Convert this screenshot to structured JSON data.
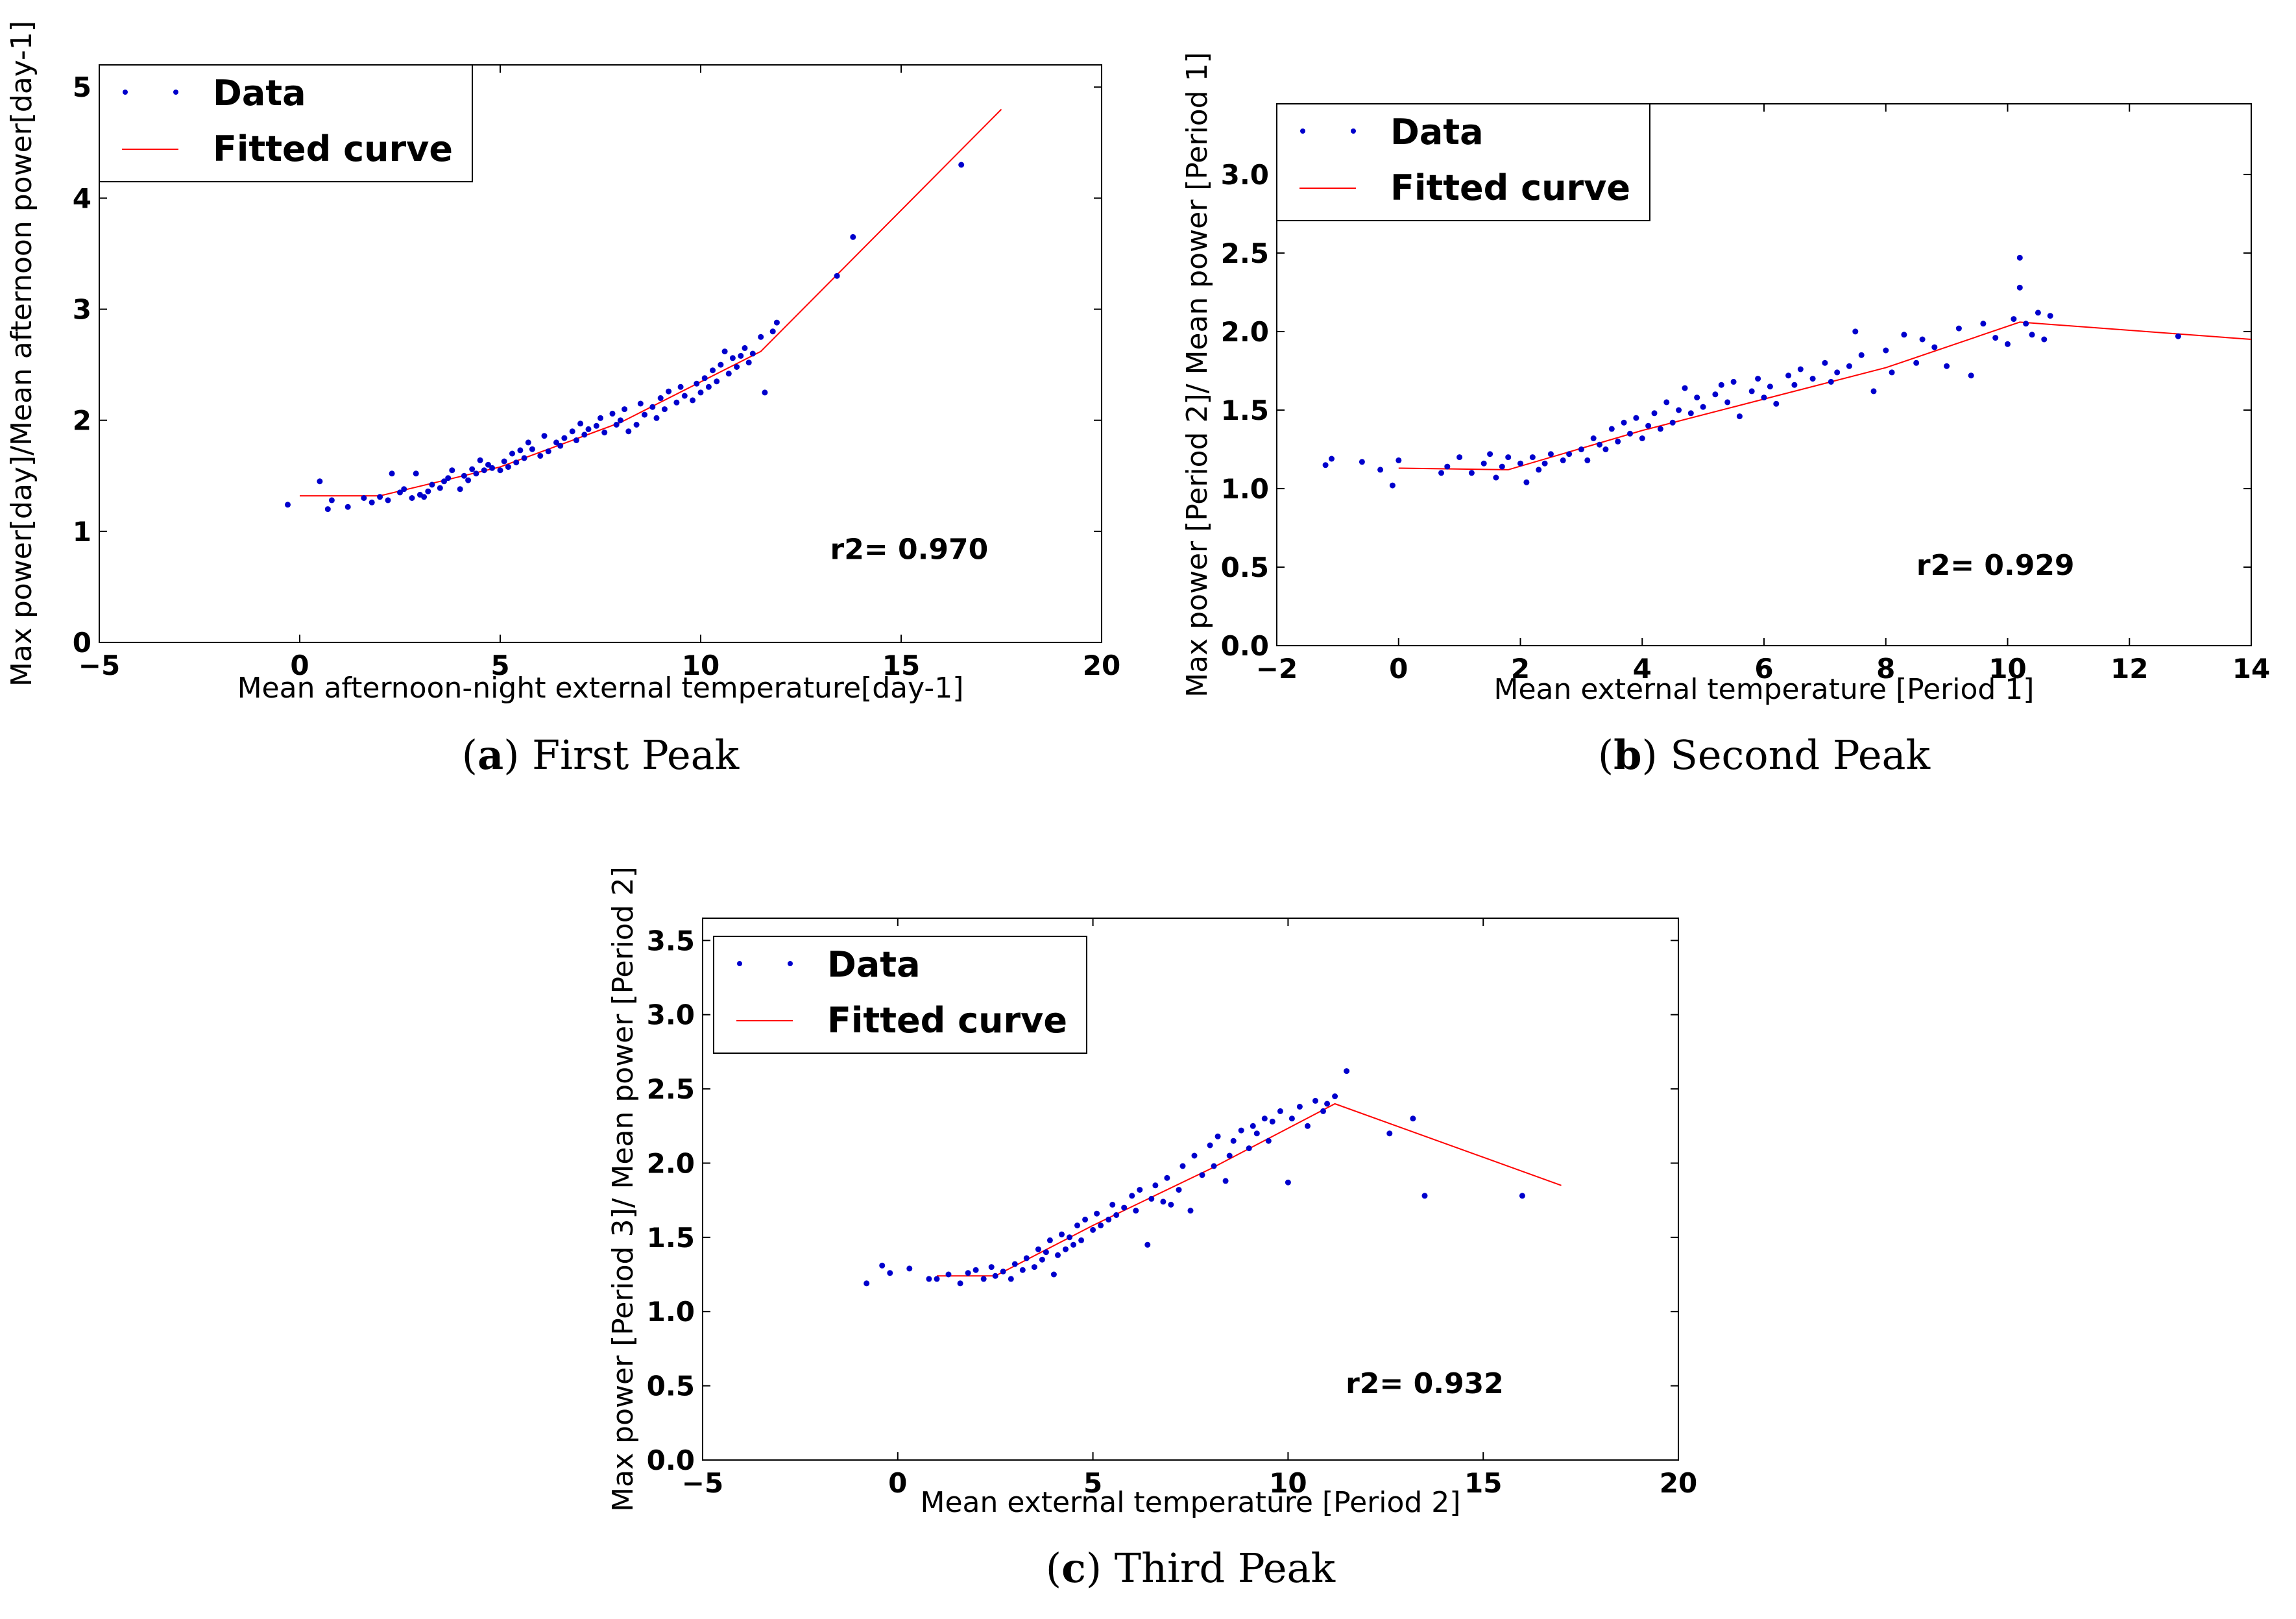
{
  "chart_data": [
    {
      "type": "scatter",
      "panel": "(a)",
      "caption_letter": "a",
      "caption_text": "First Peak",
      "xlabel": "Mean afternoon-night external temperature[day-1]",
      "ylabel": "Max power[day]/Mean afternoon power[day-1]",
      "xlim": [
        -5,
        20
      ],
      "ylim": [
        0,
        5.2
      ],
      "xticks": [
        -5,
        0,
        5,
        10,
        15,
        20
      ],
      "yticks": [
        0,
        1,
        2,
        3,
        4,
        5
      ],
      "ytick_decimals": 0,
      "legend": {
        "data": "Data",
        "fit": "Fitted curve"
      },
      "r2_label": "r2= 0.970",
      "r2_pos": [
        15.2,
        0.75
      ],
      "point_color": "#0000cc",
      "line_color": "#ff0000",
      "fit": {
        "x": [
          0,
          2.0,
          5,
          8,
          11.5,
          17.5
        ],
        "y": [
          1.32,
          1.32,
          1.58,
          1.98,
          2.62,
          4.8
        ]
      },
      "points": {
        "x": [
          -0.3,
          0.5,
          0.7,
          0.8,
          1.2,
          1.6,
          1.8,
          2.0,
          2.2,
          2.3,
          2.5,
          2.6,
          2.8,
          2.9,
          3.0,
          3.1,
          3.2,
          3.3,
          3.5,
          3.6,
          3.7,
          3.8,
          4.0,
          4.1,
          4.2,
          4.3,
          4.4,
          4.5,
          4.6,
          4.7,
          4.8,
          5.0,
          5.1,
          5.2,
          5.3,
          5.4,
          5.5,
          5.6,
          5.7,
          5.8,
          6.0,
          6.1,
          6.2,
          6.4,
          6.5,
          6.6,
          6.8,
          6.9,
          7.0,
          7.1,
          7.2,
          7.4,
          7.5,
          7.6,
          7.8,
          7.9,
          8.0,
          8.1,
          8.2,
          8.4,
          8.5,
          8.6,
          8.8,
          8.9,
          9.0,
          9.1,
          9.2,
          9.4,
          9.5,
          9.6,
          9.8,
          9.9,
          10.0,
          10.1,
          10.2,
          10.3,
          10.4,
          10.5,
          10.6,
          10.7,
          10.8,
          10.9,
          11.0,
          11.1,
          11.2,
          11.3,
          11.5,
          11.6,
          11.8,
          11.9,
          13.4,
          13.8,
          16.5
        ],
        "y": [
          1.24,
          1.45,
          1.2,
          1.28,
          1.22,
          1.3,
          1.26,
          1.31,
          1.28,
          1.52,
          1.35,
          1.38,
          1.3,
          1.52,
          1.33,
          1.31,
          1.36,
          1.42,
          1.39,
          1.45,
          1.48,
          1.55,
          1.38,
          1.5,
          1.46,
          1.56,
          1.52,
          1.64,
          1.55,
          1.6,
          1.57,
          1.55,
          1.63,
          1.58,
          1.7,
          1.62,
          1.73,
          1.66,
          1.8,
          1.74,
          1.68,
          1.86,
          1.72,
          1.8,
          1.77,
          1.84,
          1.9,
          1.82,
          1.97,
          1.87,
          1.92,
          1.95,
          2.02,
          1.89,
          2.06,
          1.96,
          2.0,
          2.1,
          1.9,
          1.96,
          2.15,
          2.05,
          2.12,
          2.02,
          2.2,
          2.1,
          2.26,
          2.16,
          2.3,
          2.22,
          2.18,
          2.33,
          2.25,
          2.38,
          2.3,
          2.45,
          2.35,
          2.5,
          2.62,
          2.42,
          2.56,
          2.48,
          2.58,
          2.65,
          2.52,
          2.6,
          2.75,
          2.25,
          2.8,
          2.88,
          3.3,
          3.65,
          4.3
        ]
      }
    },
    {
      "type": "scatter",
      "panel": "(b)",
      "caption_letter": "b",
      "caption_text": "Second Peak",
      "xlabel": "Mean external temperature [Period 1]",
      "ylabel": "Max power [Period 2]/ Mean power [Period 1]",
      "xlim": [
        -2,
        14
      ],
      "ylim": [
        0,
        3.45
      ],
      "xticks": [
        -2,
        0,
        2,
        4,
        6,
        8,
        10,
        12,
        14
      ],
      "yticks": [
        0.0,
        0.5,
        1.0,
        1.5,
        2.0,
        2.5,
        3.0
      ],
      "ytick_decimals": 1,
      "legend": {
        "data": "Data",
        "fit": "Fitted curve"
      },
      "r2_label": "r2= 0.929",
      "r2_pos": [
        9.8,
        0.45
      ],
      "point_color": "#0000cc",
      "line_color": "#ff0000",
      "fit": {
        "x": [
          0,
          1.8,
          4,
          6,
          8,
          10.2,
          14
        ],
        "y": [
          1.13,
          1.12,
          1.37,
          1.57,
          1.77,
          2.06,
          1.95
        ]
      },
      "points": {
        "x": [
          -1.2,
          -1.1,
          -0.6,
          -0.3,
          -0.1,
          0.0,
          0.7,
          0.8,
          1.0,
          1.2,
          1.4,
          1.5,
          1.6,
          1.7,
          1.8,
          2.0,
          2.1,
          2.2,
          2.3,
          2.4,
          2.5,
          2.7,
          2.8,
          3.0,
          3.1,
          3.2,
          3.3,
          3.4,
          3.5,
          3.6,
          3.7,
          3.8,
          3.9,
          4.0,
          4.1,
          4.2,
          4.3,
          4.4,
          4.5,
          4.6,
          4.7,
          4.8,
          4.9,
          5.0,
          5.2,
          5.3,
          5.4,
          5.5,
          5.6,
          5.8,
          5.9,
          6.0,
          6.1,
          6.2,
          6.4,
          6.5,
          6.6,
          6.8,
          7.0,
          7.1,
          7.2,
          7.4,
          7.5,
          7.6,
          7.8,
          8.0,
          8.1,
          8.3,
          8.5,
          8.6,
          8.8,
          9.0,
          9.2,
          9.4,
          9.6,
          9.8,
          10.0,
          10.1,
          10.2,
          10.2,
          10.3,
          10.4,
          10.5,
          10.6,
          10.7,
          12.8
        ],
        "y": [
          1.15,
          1.19,
          1.17,
          1.12,
          1.02,
          1.18,
          1.1,
          1.14,
          1.2,
          1.1,
          1.16,
          1.22,
          1.07,
          1.14,
          1.2,
          1.16,
          1.04,
          1.2,
          1.12,
          1.16,
          1.22,
          1.18,
          1.22,
          1.25,
          1.18,
          1.32,
          1.28,
          1.25,
          1.38,
          1.3,
          1.42,
          1.35,
          1.45,
          1.32,
          1.4,
          1.48,
          1.38,
          1.55,
          1.42,
          1.5,
          1.64,
          1.48,
          1.58,
          1.52,
          1.6,
          1.66,
          1.55,
          1.68,
          1.46,
          1.62,
          1.7,
          1.58,
          1.65,
          1.54,
          1.72,
          1.66,
          1.76,
          1.7,
          1.8,
          1.68,
          1.74,
          1.78,
          2.0,
          1.85,
          1.62,
          1.88,
          1.74,
          1.98,
          1.8,
          1.95,
          1.9,
          1.78,
          2.02,
          1.72,
          2.05,
          1.96,
          1.92,
          2.08,
          2.28,
          2.47,
          2.05,
          1.98,
          2.12,
          1.95,
          2.1,
          1.97
        ]
      }
    },
    {
      "type": "scatter",
      "panel": "(c)",
      "caption_letter": "c",
      "caption_text": "Third Peak",
      "xlabel": "Mean external temperature [Period 2]",
      "ylabel": "Max power [Period 3]/ Mean power [Period 2]",
      "xlim": [
        -5,
        20
      ],
      "ylim": [
        0,
        3.65
      ],
      "xticks": [
        -5,
        0,
        5,
        10,
        15,
        20
      ],
      "yticks": [
        0.0,
        0.5,
        1.0,
        1.5,
        2.0,
        2.5,
        3.0,
        3.5
      ],
      "ytick_decimals": 1,
      "legend": {
        "data": "Data",
        "fit": "Fitted curve"
      },
      "r2_label": "r2= 0.932",
      "r2_pos": [
        13.5,
        0.45
      ],
      "point_color": "#0000cc",
      "line_color": "#ff0000",
      "fit": {
        "x": [
          1.0,
          2.5,
          5,
          8,
          11.2,
          17.0
        ],
        "y": [
          1.24,
          1.24,
          1.58,
          1.96,
          2.4,
          1.85
        ]
      },
      "points": {
        "x": [
          -0.8,
          -0.4,
          -0.2,
          0.3,
          0.8,
          1.0,
          1.3,
          1.6,
          1.8,
          2.0,
          2.2,
          2.4,
          2.5,
          2.7,
          2.9,
          3.0,
          3.2,
          3.3,
          3.5,
          3.6,
          3.7,
          3.8,
          3.9,
          4.0,
          4.1,
          4.2,
          4.3,
          4.4,
          4.5,
          4.6,
          4.7,
          4.8,
          5.0,
          5.1,
          5.2,
          5.4,
          5.5,
          5.6,
          5.8,
          6.0,
          6.1,
          6.2,
          6.4,
          6.5,
          6.6,
          6.8,
          6.9,
          7.0,
          7.2,
          7.3,
          7.5,
          7.6,
          7.8,
          8.0,
          8.1,
          8.2,
          8.4,
          8.5,
          8.6,
          8.8,
          9.0,
          9.1,
          9.2,
          9.4,
          9.5,
          9.6,
          9.8,
          10.0,
          10.1,
          10.3,
          10.5,
          10.7,
          10.9,
          11.0,
          11.2,
          11.5,
          12.6,
          13.2,
          13.5,
          16.0
        ],
        "y": [
          1.19,
          1.31,
          1.26,
          1.29,
          1.22,
          1.22,
          1.25,
          1.19,
          1.26,
          1.28,
          1.22,
          1.3,
          1.24,
          1.27,
          1.22,
          1.32,
          1.28,
          1.36,
          1.3,
          1.42,
          1.35,
          1.4,
          1.48,
          1.25,
          1.38,
          1.52,
          1.42,
          1.5,
          1.45,
          1.58,
          1.48,
          1.62,
          1.55,
          1.66,
          1.58,
          1.62,
          1.72,
          1.65,
          1.7,
          1.78,
          1.68,
          1.82,
          1.45,
          1.76,
          1.85,
          1.74,
          1.9,
          1.72,
          1.82,
          1.98,
          1.68,
          2.05,
          1.92,
          2.12,
          1.98,
          2.18,
          1.88,
          2.05,
          2.15,
          2.22,
          2.1,
          2.25,
          2.2,
          2.3,
          2.15,
          2.28,
          2.35,
          1.87,
          2.3,
          2.38,
          2.25,
          2.42,
          2.35,
          2.4,
          2.45,
          2.62,
          2.2,
          2.3,
          1.78,
          1.78
        ]
      }
    }
  ]
}
